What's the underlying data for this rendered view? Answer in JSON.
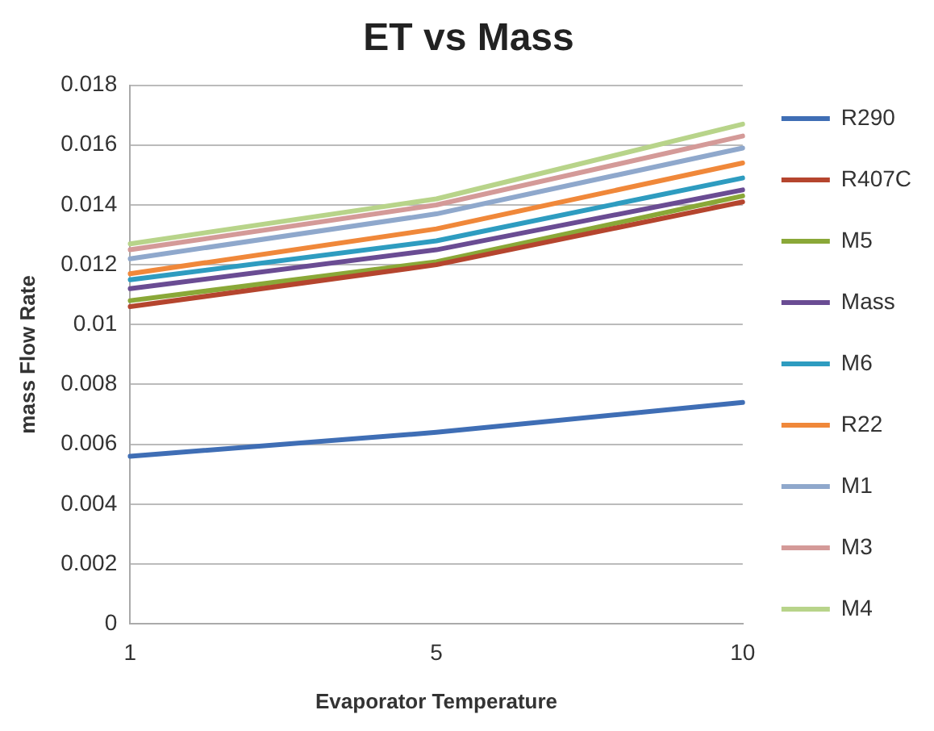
{
  "chart_data": {
    "type": "line",
    "title": "ET vs Mass",
    "xlabel": "Evaporator Temperature",
    "ylabel": "mass Flow Rate",
    "categories": [
      "1",
      "5",
      "10"
    ],
    "ylim": [
      0,
      0.018
    ],
    "yticks": [
      0,
      0.002,
      0.004,
      0.006,
      0.008,
      0.01,
      0.012,
      0.014,
      0.016,
      0.018
    ],
    "grid": "y",
    "legend": "right",
    "marker": "none",
    "line_style": "solid",
    "series": [
      {
        "name": "R290",
        "color": "#3f6eb5",
        "values": [
          0.0056,
          0.0064,
          0.0074
        ]
      },
      {
        "name": "R407C",
        "color": "#b5452e",
        "values": [
          0.0106,
          0.012,
          0.0141
        ]
      },
      {
        "name": "M5",
        "color": "#8aa838",
        "values": [
          0.0108,
          0.0121,
          0.0143
        ]
      },
      {
        "name": "Mass",
        "color": "#6a4c93",
        "values": [
          0.0112,
          0.0125,
          0.0145
        ]
      },
      {
        "name": "M6",
        "color": "#2e9cc0",
        "values": [
          0.0115,
          0.0128,
          0.0149
        ]
      },
      {
        "name": "R22",
        "color": "#f0883a",
        "values": [
          0.0117,
          0.0132,
          0.0154
        ]
      },
      {
        "name": "M1",
        "color": "#8fa8cc",
        "values": [
          0.0122,
          0.0137,
          0.0159
        ]
      },
      {
        "name": "M3",
        "color": "#d49a98",
        "values": [
          0.0125,
          0.014,
          0.0163
        ]
      },
      {
        "name": "M4",
        "color": "#b8d48a",
        "values": [
          0.0127,
          0.0142,
          0.0167
        ]
      }
    ]
  }
}
